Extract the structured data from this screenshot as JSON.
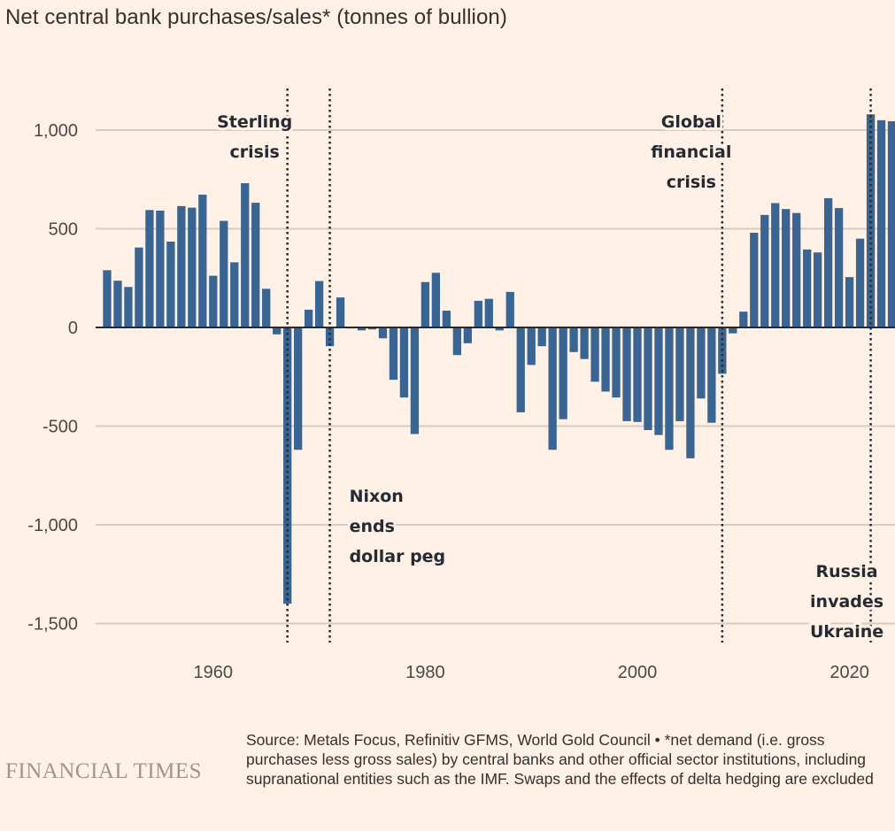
{
  "title": "Net central bank purchases/sales* (tonnes of bullion)",
  "footer": {
    "logo": "FINANCIAL TIMES",
    "source": "Source: Metals Focus, Refinitiv GFMS, World Gold Council • *net demand (i.e. gross purchases less gross sales) by central banks and other official sector institutions, including supranational entities such as the IMF. Swaps and the effects of delta hedging are excluded"
  },
  "colors": {
    "bar": "#3a6592",
    "grid": "#d9cbc0",
    "zero": "#262a33",
    "background": "#fff1e5"
  },
  "chart_data": {
    "type": "bar",
    "x": [
      1950,
      1951,
      1952,
      1953,
      1954,
      1955,
      1956,
      1957,
      1958,
      1959,
      1960,
      1961,
      1962,
      1963,
      1964,
      1965,
      1966,
      1967,
      1968,
      1969,
      1970,
      1971,
      1972,
      1973,
      1974,
      1975,
      1976,
      1977,
      1978,
      1979,
      1980,
      1981,
      1982,
      1983,
      1984,
      1985,
      1986,
      1987,
      1988,
      1989,
      1990,
      1991,
      1992,
      1993,
      1994,
      1995,
      1996,
      1997,
      1998,
      1999,
      2000,
      2001,
      2002,
      2003,
      2004,
      2005,
      2006,
      2007,
      2008,
      2009,
      2010,
      2011,
      2012,
      2013,
      2014,
      2015,
      2016,
      2017,
      2018,
      2019,
      2020,
      2021,
      2022,
      2023,
      2024
    ],
    "values": [
      290,
      237,
      205,
      405,
      595,
      592,
      435,
      615,
      607,
      673,
      262,
      540,
      330,
      731,
      632,
      196,
      -35,
      -1400,
      -620,
      90,
      235,
      -95,
      152,
      -5,
      -15,
      -10,
      -55,
      -265,
      -355,
      -540,
      230,
      277,
      85,
      -140,
      -80,
      135,
      145,
      -15,
      180,
      -430,
      -190,
      -95,
      -620,
      -465,
      -125,
      -160,
      -275,
      -325,
      -355,
      -475,
      -479,
      -520,
      -545,
      -620,
      -475,
      -663,
      -360,
      -483,
      -235,
      -30,
      80,
      480,
      570,
      630,
      600,
      580,
      395,
      380,
      655,
      605,
      255,
      450,
      1080,
      1050,
      1045
    ],
    "ylim": [
      -1500,
      1100
    ],
    "yticks": [
      1000,
      500,
      0,
      -500,
      -1000,
      -1500
    ],
    "ytick_labels": [
      "1,000",
      "500",
      "0",
      "-500",
      "-1,000",
      "-1,500"
    ],
    "xticks": [
      1960,
      1980,
      2000,
      2020
    ],
    "xtick_labels": [
      "1960",
      "1980",
      "2000",
      "2020"
    ],
    "xlabel": "",
    "ylabel": "",
    "grid": true,
    "annotations": [
      {
        "x": 1967,
        "lines": [
          "Sterling",
          "crisis"
        ],
        "placement": "top-left"
      },
      {
        "x": 1971,
        "lines": [
          "Nixon",
          "ends",
          "dollar peg"
        ],
        "placement": "bottom-right"
      },
      {
        "x": 2008,
        "lines": [
          "Global",
          "financial",
          "crisis"
        ],
        "placement": "top-left"
      },
      {
        "x": 2022,
        "lines": [
          "Russia",
          "invades",
          "Ukraine"
        ],
        "placement": "bottom-left"
      }
    ]
  }
}
